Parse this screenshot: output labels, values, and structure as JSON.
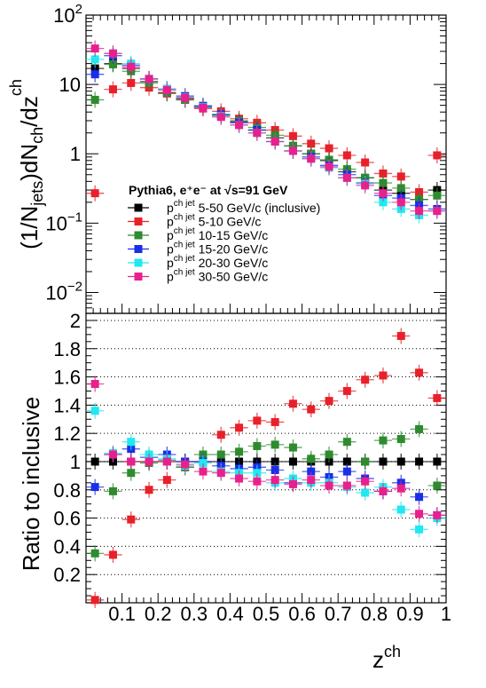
{
  "chart_data": [
    {
      "type": "scatter",
      "title": "",
      "xlabel": "z^ch",
      "ylabel": "(1/N_jets)dN_ch/dz^ch",
      "xlim": [
        0,
        1
      ],
      "ylim": [
        0.005,
        100
      ],
      "log_y": true,
      "grid": false,
      "legend_placement": "middle-center",
      "legend_header": "Pythia6, e⁺e⁻ at √s=91 GeV",
      "y_ticks": [
        {
          "value": 100,
          "label": "10²"
        },
        {
          "value": 10,
          "label": "10"
        },
        {
          "value": 1,
          "label": "1"
        },
        {
          "value": 0.1,
          "label": "10⁻¹"
        },
        {
          "value": 0.01,
          "label": "10⁻²"
        }
      ],
      "series": [
        {
          "name": "p_T^ch jet 5-50 GeV/c (inclusive)",
          "label_main": "p",
          "label_sup": "ch jet",
          "label_sub": "T",
          "label_rest": " 5-50 GeV/c (inclusive)",
          "color": "#000000",
          "x": [
            0.025,
            0.075,
            0.125,
            0.175,
            0.225,
            0.275,
            0.325,
            0.375,
            0.425,
            0.475,
            0.525,
            0.575,
            0.625,
            0.675,
            0.725,
            0.775,
            0.825,
            0.875,
            0.925,
            0.975
          ],
          "y": [
            17,
            20,
            17,
            11,
            7.6,
            6.3,
            4.7,
            3.6,
            2.9,
            2.2,
            1.7,
            1.3,
            1.0,
            0.8,
            0.55,
            0.45,
            0.3,
            0.27,
            0.22,
            0.3
          ]
        },
        {
          "name": "p_T^ch jet 5-10 GeV/c",
          "label_main": "p",
          "label_sup": "ch jet",
          "label_sub": "T",
          "label_rest": " 5-10 GeV/c",
          "color": "#e8202a",
          "x": [
            0.025,
            0.075,
            0.125,
            0.175,
            0.225,
            0.275,
            0.325,
            0.375,
            0.425,
            0.475,
            0.525,
            0.575,
            0.625,
            0.675,
            0.725,
            0.775,
            0.825,
            0.875,
            0.925,
            0.975
          ],
          "y": [
            0.27,
            8.5,
            10.5,
            9.0,
            7.4,
            6.0,
            4.5,
            4.1,
            3.2,
            2.8,
            2.2,
            1.8,
            1.4,
            1.2,
            0.95,
            0.75,
            0.52,
            0.47,
            0.28,
            0.95
          ]
        },
        {
          "name": "p_T^ch jet 10-15 GeV/c",
          "label_main": "p",
          "label_sup": "ch jet",
          "label_sub": "T",
          "label_rest": " 10-15 GeV/c",
          "color": "#2e8b2e",
          "x": [
            0.025,
            0.075,
            0.125,
            0.175,
            0.225,
            0.275,
            0.325,
            0.375,
            0.425,
            0.475,
            0.525,
            0.575,
            0.625,
            0.675,
            0.725,
            0.775,
            0.825,
            0.875,
            0.925,
            0.975
          ],
          "y": [
            6,
            19.5,
            15.5,
            10.5,
            7.6,
            6.0,
            4.9,
            3.6,
            3.0,
            2.4,
            1.85,
            1.3,
            1.0,
            0.82,
            0.6,
            0.45,
            0.38,
            0.32,
            0.22,
            0.25
          ]
        },
        {
          "name": "p_T^ch jet 15-20 GeV/c",
          "label_main": "p",
          "label_sup": "ch jet",
          "label_sub": "T",
          "label_rest": " 15-20 GeV/c",
          "color": "#1a2ee8",
          "x": [
            0.025,
            0.075,
            0.125,
            0.175,
            0.225,
            0.275,
            0.325,
            0.375,
            0.425,
            0.475,
            0.525,
            0.575,
            0.625,
            0.675,
            0.725,
            0.775,
            0.825,
            0.875,
            0.925,
            0.975
          ],
          "y": [
            14,
            26,
            19,
            12,
            8.6,
            6.8,
            4.9,
            3.7,
            2.8,
            2.2,
            1.5,
            1.1,
            0.9,
            0.68,
            0.5,
            0.38,
            0.25,
            0.23,
            0.18,
            0.16
          ]
        },
        {
          "name": "p_T^ch jet 20-30 GeV/c",
          "label_main": "p",
          "label_sup": "ch jet",
          "label_sub": "T",
          "label_rest": " 20-30 GeV/c",
          "color": "#20e8f0",
          "x": [
            0.025,
            0.075,
            0.125,
            0.175,
            0.225,
            0.275,
            0.325,
            0.375,
            0.425,
            0.475,
            0.525,
            0.575,
            0.625,
            0.675,
            0.725,
            0.775,
            0.825,
            0.875,
            0.925,
            0.975
          ],
          "y": [
            23,
            28,
            20,
            12,
            8.6,
            6.5,
            4.7,
            3.5,
            2.6,
            2.0,
            1.5,
            1.1,
            0.85,
            0.63,
            0.45,
            0.37,
            0.2,
            0.16,
            0.13,
            0.15
          ]
        },
        {
          "name": "p_T^ch jet 30-50 GeV/c",
          "label_main": "p",
          "label_sup": "ch jet",
          "label_sub": "T",
          "label_rest": " 30-50 GeV/c",
          "color": "#e8208c",
          "x": [
            0.025,
            0.075,
            0.125,
            0.175,
            0.225,
            0.275,
            0.325,
            0.375,
            0.425,
            0.475,
            0.525,
            0.575,
            0.625,
            0.675,
            0.725,
            0.775,
            0.825,
            0.875,
            0.925,
            0.975
          ],
          "y": [
            33,
            28,
            18,
            12,
            8.3,
            6.4,
            4.6,
            3.4,
            2.6,
            2.0,
            1.5,
            1.1,
            0.85,
            0.65,
            0.45,
            0.35,
            0.27,
            0.2,
            0.15,
            0.15
          ]
        }
      ]
    },
    {
      "type": "scatter",
      "title": "",
      "xlabel": "z^ch",
      "ylabel": "Ratio to inclusive",
      "xlim": [
        0,
        1
      ],
      "ylim": [
        0,
        2.05
      ],
      "grid": "horizontal dotted",
      "x_ticks": [
        "0.1",
        "0.2",
        "0.3",
        "0.4",
        "0.5",
        "0.6",
        "0.7",
        "0.8",
        "0.9",
        "1"
      ],
      "y_ticks": [
        "0.2",
        "0.4",
        "0.6",
        "0.8",
        "1",
        "1.2",
        "1.4",
        "1.6",
        "1.8",
        "2"
      ],
      "series": [
        {
          "name": "inclusive",
          "color": "#000000",
          "x": [
            0.025,
            0.075,
            0.125,
            0.175,
            0.225,
            0.275,
            0.325,
            0.375,
            0.425,
            0.475,
            0.525,
            0.575,
            0.625,
            0.675,
            0.725,
            0.775,
            0.825,
            0.875,
            0.925,
            0.975
          ],
          "y": [
            1,
            1,
            1,
            1,
            1,
            1,
            1,
            1,
            1,
            1,
            1,
            1,
            1,
            1,
            1,
            1,
            1,
            1,
            1,
            1
          ]
        },
        {
          "name": "5-10 GeV/c",
          "color": "#e8202a",
          "x": [
            0.025,
            0.075,
            0.125,
            0.175,
            0.225,
            0.275,
            0.325,
            0.375,
            0.425,
            0.475,
            0.525,
            0.575,
            0.625,
            0.675,
            0.725,
            0.775,
            0.825,
            0.875,
            0.925,
            0.975
          ],
          "y": [
            0.02,
            0.34,
            0.59,
            0.8,
            0.87,
            0.96,
            1.0,
            1.19,
            1.24,
            1.29,
            1.28,
            1.41,
            1.37,
            1.43,
            1.5,
            1.58,
            1.61,
            1.89,
            1.63,
            1.45
          ]
        },
        {
          "name": "10-15 GeV/c",
          "color": "#2e8b2e",
          "x": [
            0.025,
            0.075,
            0.125,
            0.175,
            0.225,
            0.275,
            0.325,
            0.375,
            0.425,
            0.475,
            0.525,
            0.575,
            0.625,
            0.675,
            0.725,
            0.775,
            0.825,
            0.875,
            0.925,
            0.975
          ],
          "y": [
            0.35,
            0.79,
            0.92,
            0.99,
            1.01,
            0.96,
            1.05,
            1.05,
            1.07,
            1.11,
            1.12,
            1.1,
            1.02,
            1.05,
            1.14,
            1.0,
            1.15,
            1.16,
            1.23,
            0.83
          ]
        },
        {
          "name": "15-20 GeV/c",
          "color": "#1a2ee8",
          "x": [
            0.025,
            0.075,
            0.125,
            0.175,
            0.225,
            0.275,
            0.325,
            0.375,
            0.425,
            0.475,
            0.525,
            0.575,
            0.625,
            0.675,
            0.725,
            0.775,
            0.825,
            0.875,
            0.925,
            0.975
          ],
          "y": [
            0.82,
            1.05,
            1.09,
            1.03,
            1.05,
            1.0,
            1.0,
            0.97,
            0.95,
            0.96,
            0.94,
            0.85,
            0.93,
            0.89,
            0.93,
            0.88,
            0.79,
            0.85,
            0.75,
            0.62
          ]
        },
        {
          "name": "20-30 GeV/c",
          "color": "#20e8f0",
          "x": [
            0.025,
            0.075,
            0.125,
            0.175,
            0.225,
            0.275,
            0.325,
            0.375,
            0.425,
            0.475,
            0.525,
            0.575,
            0.625,
            0.675,
            0.725,
            0.775,
            0.825,
            0.875,
            0.925,
            0.975
          ],
          "y": [
            1.36,
            1.06,
            1.14,
            1.05,
            1.02,
            0.97,
            0.99,
            0.93,
            0.92,
            0.92,
            0.85,
            0.88,
            0.85,
            0.85,
            0.82,
            0.78,
            0.82,
            0.66,
            0.52,
            0.6
          ]
        },
        {
          "name": "30-50 GeV/c",
          "color": "#e8208c",
          "x": [
            0.025,
            0.075,
            0.125,
            0.175,
            0.225,
            0.275,
            0.325,
            0.375,
            0.425,
            0.475,
            0.525,
            0.575,
            0.625,
            0.675,
            0.725,
            0.775,
            0.825,
            0.875,
            0.925,
            0.975
          ],
          "y": [
            1.55,
            1.05,
            1.0,
            1.0,
            1.0,
            0.98,
            0.93,
            0.92,
            0.88,
            0.86,
            0.87,
            0.84,
            0.87,
            0.83,
            0.83,
            0.86,
            0.79,
            0.81,
            0.63,
            0.62
          ]
        }
      ]
    }
  ]
}
